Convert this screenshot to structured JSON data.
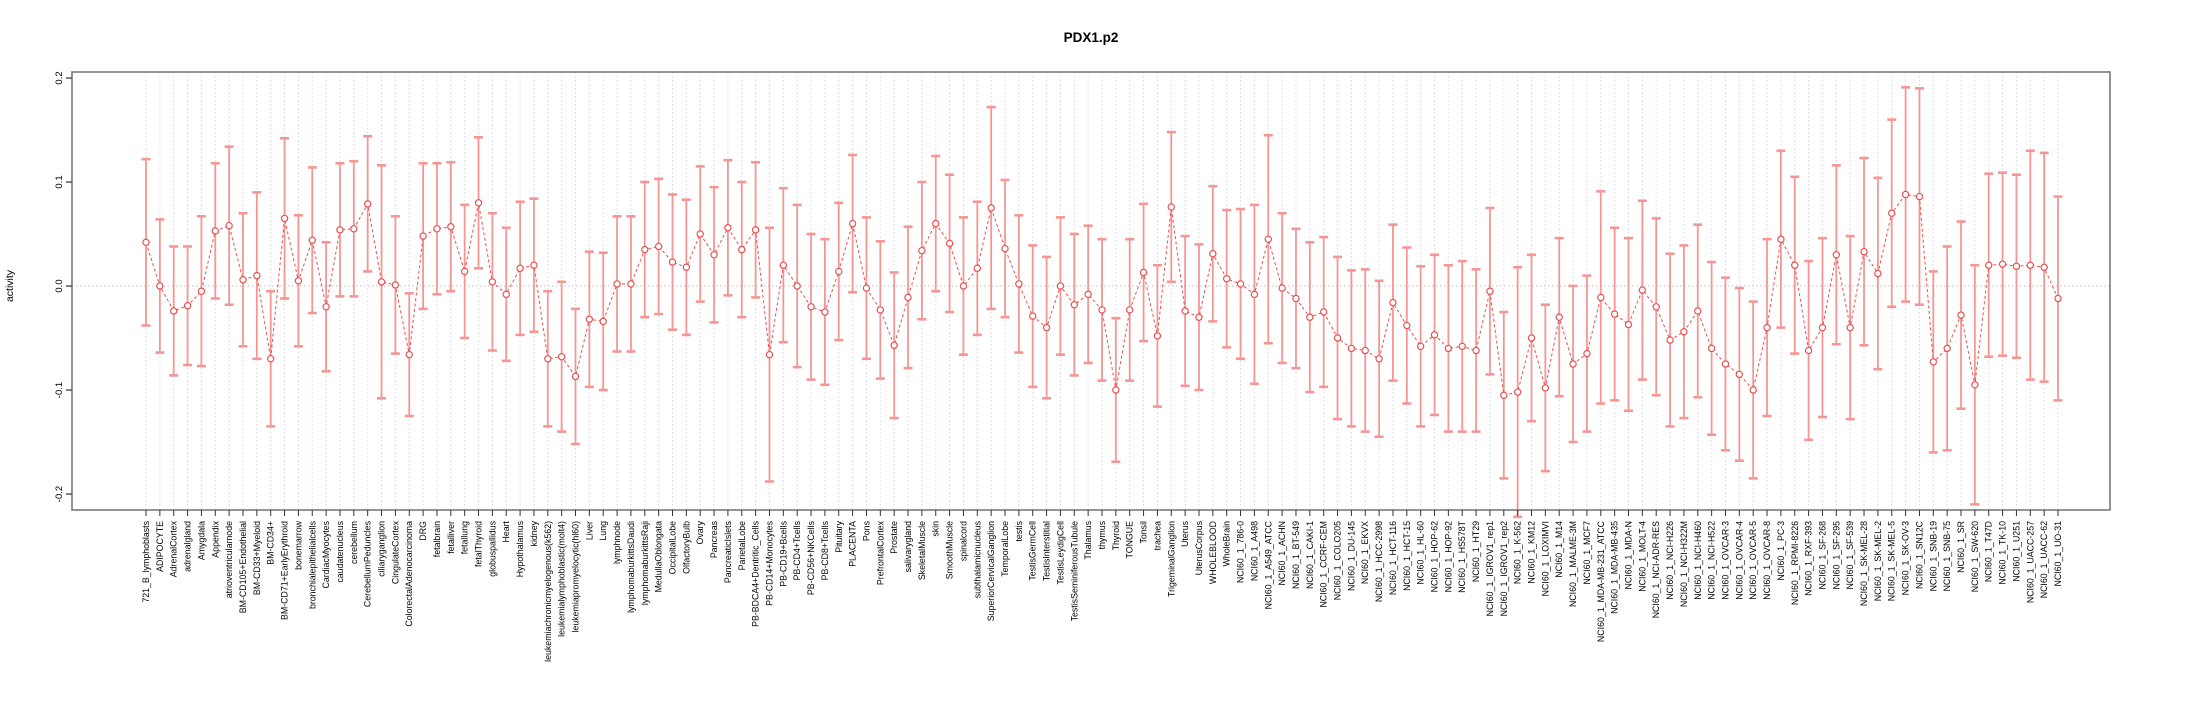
{
  "window": {
    "title": "PDX1.p2"
  },
  "chart_data": {
    "type": "line",
    "title": "PDX1.p2",
    "subtitle": "",
    "xlabel": "",
    "ylabel": "activity",
    "ylim": [
      -0.2,
      0.2
    ],
    "yticks": [
      -0.2,
      -0.1,
      0.0,
      0.1,
      0.2
    ],
    "ytick_labels": [
      "-0.2",
      "-0.1",
      "0.0",
      "0.1",
      "0.2"
    ],
    "grid": "vertical dotted gridline at every category; dotted horizontal line at y=0",
    "legend_position": "none",
    "marker": "open-circle",
    "error_bars": "symmetric with caps",
    "series_name": "activity",
    "categories": [
      "721_B_lymphoblasts",
      "ADIPOCYTE",
      "AdrenalCortex",
      "adrenalgland",
      "Amygdala",
      "Appendix",
      "atrioventricularnode",
      "BM-CD105+Endothelial",
      "BM-CD33+Myeloid",
      "BM-CD34+",
      "BM-CD71+EarlyErythroid",
      "bonemarrow",
      "bronchialepithelialcells",
      "CardiacMyocytes",
      "caudatenucleus",
      "cerebellum",
      "CerebellumPeduncles",
      "ciliaryganglion",
      "CingulateCortex",
      "ColorectalAdenocarcinoma",
      "DRG",
      "fetalbrain",
      "fetalliver",
      "fetallung",
      "fetalThyroid",
      "globuspallidus",
      "Heart",
      "Hypothalamus",
      "kidney",
      "leukemiachronicmyelogenous(k562)",
      "leukemialymphoblastic(molt4)",
      "leukemiapromyelocytic(hl60)",
      "Liver",
      "Lung",
      "lymphnode",
      "lymphomaburkittsDaudi",
      "lymphomaburkittsRaji",
      "MedullaOblongata",
      "OccipitalLobe",
      "OlfactoryBulb",
      "Ovary",
      "Pancreas",
      "PancreaticIslets",
      "ParietalLobe",
      "PB-BDCA4+Dentritic_Cells",
      "PB-CD14+Monocytes",
      "PB-CD19+Bcells",
      "PB-CD4+Tcells",
      "PB-CD56+NKCells",
      "PB-CD8+Tcells",
      "Pituitary",
      "PLACENTA",
      "Pons",
      "PrefrontalCortex",
      "Prostate",
      "salivarygland",
      "SkeletalMuscle",
      "skin",
      "SmoothMuscle",
      "spinalcord",
      "subthalamicnucleus",
      "SuperiorCervicalGanglion",
      "TemporalLobe",
      "testis",
      "TestisGermCell",
      "TestisInterstitial",
      "TestisLeydigCell",
      "TestisSeminiferousTubule",
      "Thalamus",
      "thymus",
      "Thyroid",
      "TONGUE",
      "Tonsil",
      "trachea",
      "TrigeminalGanglion",
      "Uterus",
      "UterusCorpus",
      "WHOLEBLOOD",
      "WholeBrain",
      "NCI60_1_786-0",
      "NCI60_1_A498",
      "NCI60_1_A549_ATCC",
      "NCI60_1_ACHN",
      "NCI60_1_BT-549",
      "NCI60_1_CAKI-1",
      "NCI60_1_CCRF-CEM",
      "NCI60_1_COLO205",
      "NCI60_1_DU-145",
      "NCI60_1_EKVX",
      "NCI60_1_HCC-2998",
      "NCI60_1_HCT-116",
      "NCI60_1_HCT-15",
      "NCI60_1_HL-60",
      "NCI60_1_HOP-62",
      "NCI60_1_HOP-92",
      "NCI60_1_HS578T",
      "NCI60_1_HT29",
      "NCI60_1_IGROV1_rep1",
      "NCI60_1_IGROV1_rep2",
      "NCI60_1_K-562",
      "NCI60_1_KM12",
      "NCI60_1_LOXIMVI",
      "NCI60_1_M14",
      "NCI60_1_MALME-3M",
      "NCI60_1_MCF7",
      "NCI60_1_MDA-MB-231_ATCC",
      "NCI60_1_MDA-MB-435",
      "NCI60_1_MDA-N",
      "NCI60_1_MOLT-4",
      "NCI60_1_NCI-ADR-RES",
      "NCI60_1_NCI-H226",
      "NCI60_1_NCI-H322M",
      "NCI60_1_NCI-H460",
      "NCI60_1_NCI-H522",
      "NCI60_1_OVCAR-3",
      "NCI60_1_OVCAR-4",
      "NCI60_1_OVCAR-5",
      "NCI60_1_OVCAR-8",
      "NCI60_1_PC-3",
      "NCI60_1_RPMI-8226",
      "NCI60_1_RXF-393",
      "NCI60_1_SF-268",
      "NCI60_1_SF-295",
      "NCI60_1_SF-539",
      "NCI60_1_SK-MEL-28",
      "NCI60_1_SK-MEL-2",
      "NCI60_1_SK-MEL-5",
      "NCI60_1_SK-OV-3",
      "NCI60_1_SN12C",
      "NCI60_1_SNB-19",
      "NCI60_1_SNB-75",
      "NCI60_1_SR",
      "NCI60_1_SW-620",
      "NCI60_1_T47D",
      "NCI60_1_TK-10",
      "NCI60_1_U251",
      "NCI60_1_UACC-257",
      "NCI60_1_UACC-62",
      "NCI60_1_UO-31"
    ],
    "values": [
      0.042,
      0.0,
      -0.024,
      -0.019,
      -0.005,
      0.053,
      0.058,
      0.006,
      0.01,
      -0.07,
      0.065,
      0.005,
      0.044,
      -0.02,
      0.054,
      0.055,
      0.079,
      0.004,
      0.001,
      -0.066,
      0.048,
      0.055,
      0.057,
      0.014,
      0.08,
      0.004,
      -0.008,
      0.017,
      0.02,
      -0.07,
      -0.068,
      -0.087,
      -0.032,
      -0.034,
      0.002,
      0.002,
      0.035,
      0.038,
      0.023,
      0.018,
      0.05,
      0.03,
      0.056,
      0.035,
      0.054,
      -0.066,
      0.02,
      0.0,
      -0.02,
      -0.025,
      0.014,
      0.06,
      -0.002,
      -0.023,
      -0.057,
      -0.011,
      0.034,
      0.06,
      0.041,
      0.0,
      0.017,
      0.075,
      0.036,
      0.002,
      -0.029,
      -0.04,
      0.0,
      -0.018,
      -0.008,
      -0.023,
      -0.1,
      -0.023,
      0.013,
      -0.048,
      0.076,
      -0.024,
      -0.03,
      0.031,
      0.007,
      0.002,
      -0.008,
      0.045,
      -0.002,
      -0.012,
      -0.03,
      -0.025,
      -0.05,
      -0.06,
      -0.062,
      -0.07,
      -0.016,
      -0.038,
      -0.058,
      -0.047,
      -0.06,
      -0.058,
      -0.062,
      -0.005,
      -0.105,
      -0.102,
      -0.05,
      -0.098,
      -0.03,
      -0.075,
      -0.065,
      -0.011,
      -0.027,
      -0.037,
      -0.004,
      -0.02,
      -0.052,
      -0.044,
      -0.024,
      -0.06,
      -0.075,
      -0.085,
      -0.1,
      -0.04,
      0.045,
      0.02,
      -0.062,
      -0.04,
      0.03,
      -0.04,
      0.033,
      0.012,
      0.07,
      0.088,
      0.086,
      -0.073,
      -0.06,
      -0.028,
      -0.095,
      0.02,
      0.021,
      0.019,
      0.02,
      0.018,
      -0.012
    ],
    "errors": [
      0.08,
      0.064,
      0.062,
      0.057,
      0.072,
      0.065,
      0.076,
      0.064,
      0.08,
      0.065,
      0.077,
      0.063,
      0.07,
      0.062,
      0.064,
      0.065,
      0.065,
      0.112,
      0.066,
      0.059,
      0.07,
      0.063,
      0.062,
      0.064,
      0.063,
      0.066,
      0.064,
      0.064,
      0.064,
      0.065,
      0.072,
      0.065,
      0.065,
      0.066,
      0.065,
      0.065,
      0.065,
      0.065,
      0.065,
      0.065,
      0.065,
      0.065,
      0.065,
      0.065,
      0.065,
      0.122,
      0.074,
      0.078,
      0.07,
      0.07,
      0.066,
      0.066,
      0.068,
      0.066,
      0.07,
      0.068,
      0.066,
      0.065,
      0.066,
      0.066,
      0.064,
      0.097,
      0.066,
      0.066,
      0.068,
      0.068,
      0.066,
      0.068,
      0.066,
      0.068,
      0.069,
      0.068,
      0.066,
      0.068,
      0.072,
      0.072,
      0.07,
      0.065,
      0.066,
      0.072,
      0.086,
      0.1,
      0.072,
      0.067,
      0.072,
      0.072,
      0.078,
      0.075,
      0.078,
      0.075,
      0.075,
      0.075,
      0.077,
      0.077,
      0.08,
      0.082,
      0.078,
      0.08,
      0.08,
      0.12,
      0.08,
      0.08,
      0.076,
      0.075,
      0.075,
      0.102,
      0.083,
      0.083,
      0.086,
      0.085,
      0.083,
      0.083,
      0.083,
      0.083,
      0.083,
      0.083,
      0.085,
      0.085,
      0.085,
      0.085,
      0.086,
      0.086,
      0.086,
      0.088,
      0.09,
      0.092,
      0.09,
      0.103,
      0.104,
      0.087,
      0.098,
      0.09,
      0.115,
      0.088,
      0.088,
      0.088,
      0.11,
      0.11,
      0.098
    ],
    "colors": {
      "point": "#e8514f",
      "line": "#e8514f",
      "error_bar": "#f59693",
      "grid": "#d9d9d9",
      "zero_line": "#c0c0c0",
      "box": "#7a7a7a",
      "tick": "#333333",
      "text": "#000000",
      "background": "#ffffff"
    }
  }
}
